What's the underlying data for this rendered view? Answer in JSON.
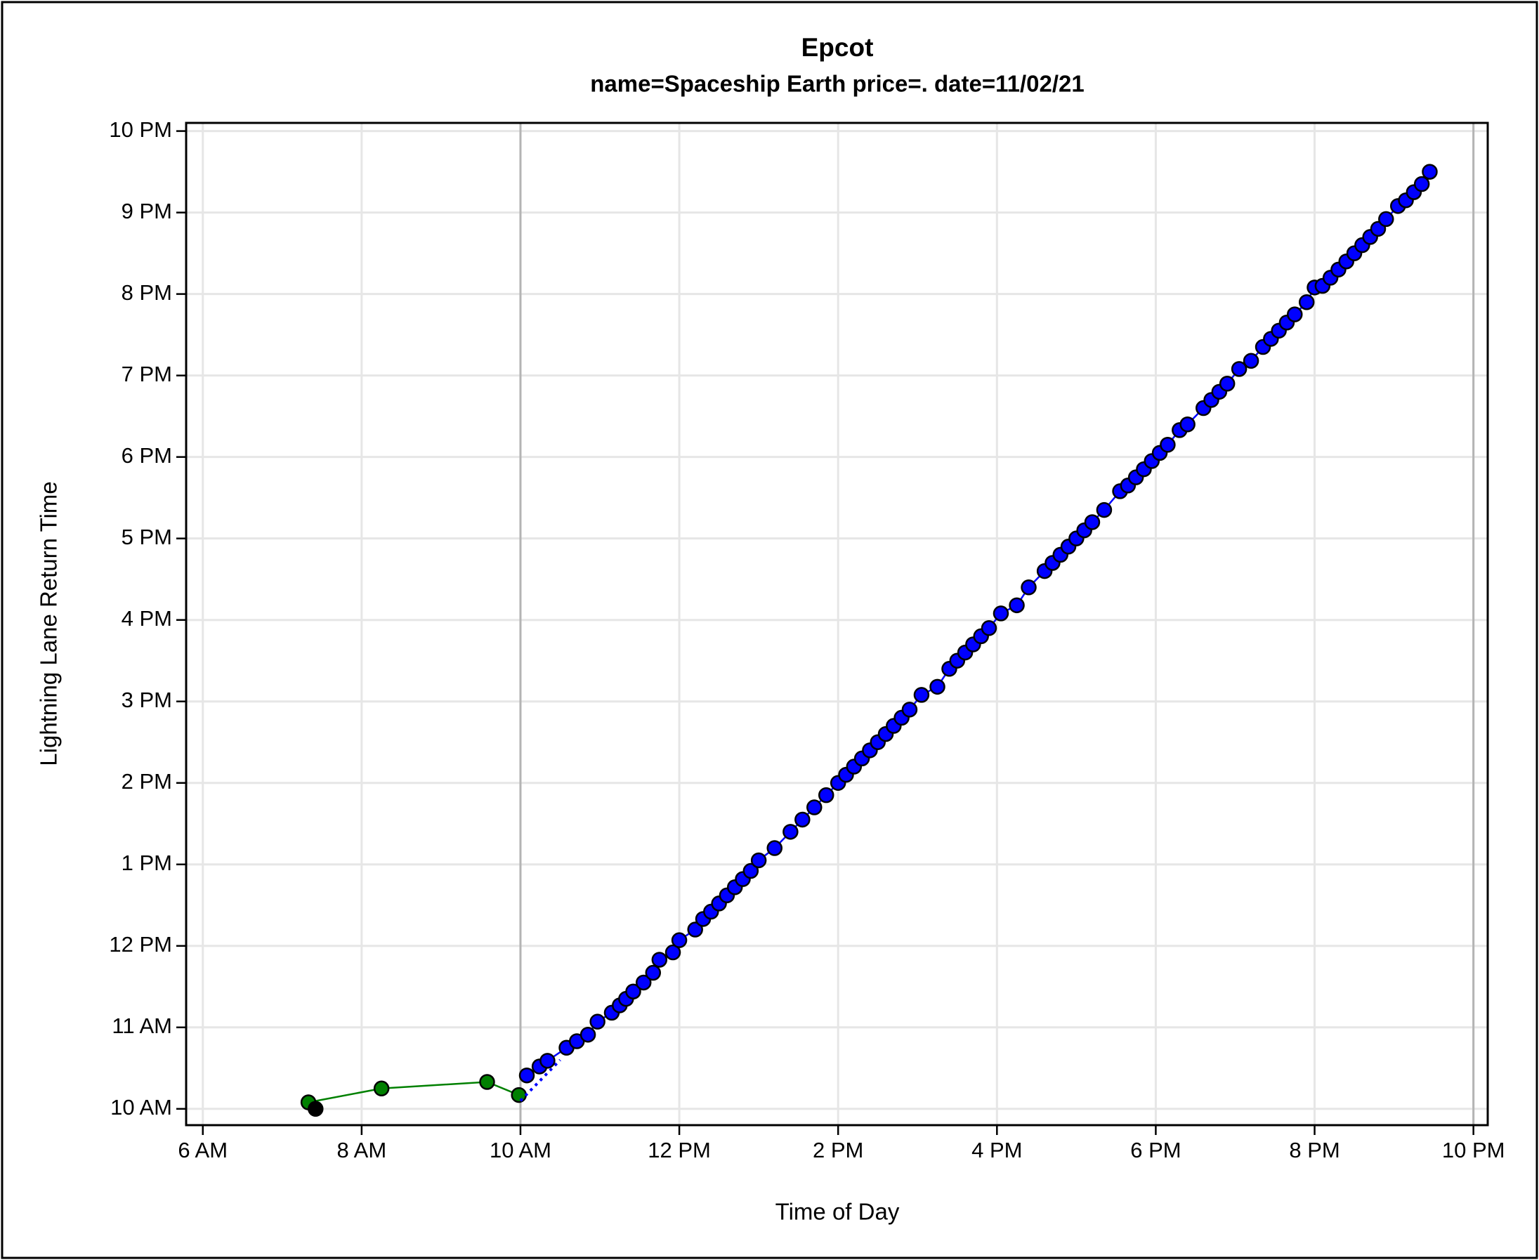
{
  "chart_data": {
    "type": "scatter",
    "title": "Epcot",
    "subtitle": "name=Spaceship Earth price=. date=11/02/21",
    "x_label": "Time of Day",
    "y_label": "Lightning Lane Return Time",
    "xlim": [
      5.79,
      22.18
    ],
    "ylim": [
      9.8,
      22.1
    ],
    "xticks": [
      {
        "value": 6,
        "label": "6 AM"
      },
      {
        "value": 8,
        "label": "8 AM"
      },
      {
        "value": 10,
        "label": "10 AM"
      },
      {
        "value": 12,
        "label": "12 PM"
      },
      {
        "value": 14,
        "label": "2 PM"
      },
      {
        "value": 16,
        "label": "4 PM"
      },
      {
        "value": 18,
        "label": "6 PM"
      },
      {
        "value": 20,
        "label": "8 PM"
      },
      {
        "value": 22,
        "label": "10 PM"
      }
    ],
    "yticks": [
      {
        "value": 10,
        "label": "10 AM"
      },
      {
        "value": 11,
        "label": "11 AM"
      },
      {
        "value": 12,
        "label": "12 PM"
      },
      {
        "value": 13,
        "label": "1 PM"
      },
      {
        "value": 14,
        "label": "2 PM"
      },
      {
        "value": 15,
        "label": "3 PM"
      },
      {
        "value": 16,
        "label": "4 PM"
      },
      {
        "value": 17,
        "label": "5 PM"
      },
      {
        "value": 18,
        "label": "6 PM"
      },
      {
        "value": 19,
        "label": "7 PM"
      },
      {
        "value": 20,
        "label": "8 PM"
      },
      {
        "value": 21,
        "label": "9 PM"
      },
      {
        "value": 22,
        "label": "10 PM"
      }
    ],
    "grid": true,
    "xrefs": [
      10,
      22
    ],
    "series": [
      {
        "color": "#008000",
        "line": true,
        "markers": true,
        "x": [
          7.33,
          8.25,
          9.58,
          9.98
        ],
        "values": [
          10.08,
          10.25,
          10.33,
          10.17
        ]
      },
      {
        "color": "#000000",
        "line": false,
        "markers": true,
        "x": [
          7.42
        ],
        "values": [
          10.0
        ]
      },
      {
        "color": "#0000ff",
        "line": true,
        "dash": true,
        "markers": false,
        "x": [
          10.0,
          10.5
        ],
        "values": [
          10.1,
          10.6
        ]
      },
      {
        "color": "#0000ff",
        "line": true,
        "markers": true,
        "x": [
          10.08,
          10.24,
          10.34,
          10.58,
          10.71,
          10.85,
          10.97,
          11.15,
          11.25,
          11.33,
          11.42,
          11.55,
          11.67,
          11.75,
          11.92,
          12.0,
          12.2,
          12.3,
          12.4,
          12.5,
          12.6,
          12.7,
          12.8,
          12.9,
          13.0,
          13.2,
          13.4,
          13.55,
          13.7,
          13.85,
          14.0,
          14.1,
          14.2,
          14.3,
          14.4,
          14.5,
          14.6,
          14.7,
          14.8,
          14.9,
          15.05,
          15.25,
          15.4,
          15.5,
          15.6,
          15.7,
          15.8,
          15.9,
          16.05,
          16.25,
          16.4,
          16.6,
          16.7,
          16.8,
          16.9,
          17.0,
          17.1,
          17.2,
          17.35,
          17.55,
          17.65,
          17.75,
          17.85,
          17.95,
          18.05,
          18.15,
          18.3,
          18.4,
          18.6,
          18.7,
          18.8,
          18.9,
          19.05,
          19.2,
          19.35,
          19.45,
          19.55,
          19.65,
          19.75,
          19.9,
          20.0,
          20.1,
          20.2,
          20.3,
          20.4,
          20.5,
          20.6,
          20.7,
          20.8,
          20.9,
          21.05,
          21.15,
          21.25,
          21.35,
          21.45
        ],
        "values": [
          10.41,
          10.52,
          10.59,
          10.75,
          10.83,
          10.91,
          11.07,
          11.18,
          11.27,
          11.35,
          11.44,
          11.55,
          11.67,
          11.83,
          11.92,
          12.07,
          12.2,
          12.33,
          12.42,
          12.52,
          12.62,
          12.72,
          12.82,
          12.92,
          13.05,
          13.2,
          13.4,
          13.55,
          13.7,
          13.85,
          14.0,
          14.1,
          14.2,
          14.3,
          14.4,
          14.5,
          14.6,
          14.7,
          14.8,
          14.9,
          15.08,
          15.18,
          15.4,
          15.5,
          15.6,
          15.7,
          15.8,
          15.9,
          16.08,
          16.18,
          16.4,
          16.6,
          16.7,
          16.8,
          16.9,
          17.0,
          17.1,
          17.2,
          17.35,
          17.58,
          17.65,
          17.75,
          17.85,
          17.95,
          18.05,
          18.15,
          18.33,
          18.4,
          18.6,
          18.7,
          18.8,
          18.9,
          19.08,
          19.18,
          19.35,
          19.45,
          19.55,
          19.65,
          19.75,
          19.9,
          20.08,
          20.1,
          20.2,
          20.3,
          20.4,
          20.5,
          20.6,
          20.7,
          20.8,
          20.92,
          21.08,
          21.15,
          21.25,
          21.35,
          21.5
        ]
      }
    ]
  }
}
